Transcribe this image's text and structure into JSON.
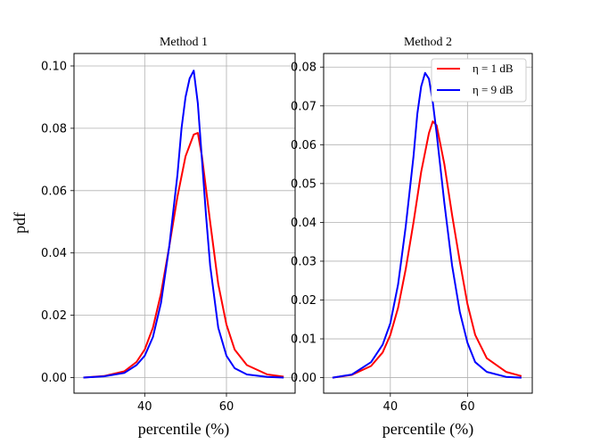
{
  "ylabel": "pdf",
  "colors": {
    "eta1": "#ff0000",
    "eta9": "#0000ff"
  },
  "legend": {
    "placement": "top-right",
    "panel": "Method 2"
  },
  "chart_data": [
    {
      "type": "line",
      "title": "Method 1",
      "xlabel": "percentile (%)",
      "ylabel": "pdf",
      "xlim": [
        22.7,
        76.8
      ],
      "ylim": [
        -0.005,
        0.104
      ],
      "xticks": [
        40,
        60
      ],
      "yticks": [
        "0.00",
        "0.02",
        "0.04",
        "0.06",
        "0.08",
        "0.10"
      ],
      "grid": true,
      "series": [
        {
          "name": "η = 1 dB",
          "color": "#ff0000",
          "x": [
            25,
            30,
            35,
            38,
            40,
            42,
            44,
            46,
            48,
            50,
            52,
            53,
            54,
            56,
            58,
            60,
            62,
            65,
            70,
            74
          ],
          "y": [
            0.0,
            0.0005,
            0.002,
            0.005,
            0.009,
            0.016,
            0.027,
            0.042,
            0.058,
            0.071,
            0.078,
            0.0785,
            0.071,
            0.05,
            0.03,
            0.017,
            0.009,
            0.004,
            0.001,
            0.0003
          ]
        },
        {
          "name": "η = 9 dB",
          "color": "#0000ff",
          "x": [
            25,
            30,
            35,
            38,
            40,
            42,
            44,
            46,
            48,
            49,
            50,
            51,
            52,
            53,
            54,
            55,
            56,
            58,
            60,
            62,
            65,
            70,
            74
          ],
          "y": [
            0.0,
            0.0004,
            0.0015,
            0.004,
            0.007,
            0.013,
            0.024,
            0.042,
            0.065,
            0.08,
            0.09,
            0.096,
            0.0985,
            0.088,
            0.07,
            0.052,
            0.036,
            0.016,
            0.007,
            0.003,
            0.001,
            0.0002,
            0.0
          ]
        }
      ]
    },
    {
      "type": "line",
      "title": "Method 2",
      "xlabel": "percentile (%)",
      "ylabel": "",
      "xlim": [
        22.7,
        76.8
      ],
      "ylim": [
        -0.004,
        0.0835
      ],
      "xticks": [
        40,
        60
      ],
      "yticks": [
        "0.00",
        "0.01",
        "0.02",
        "0.03",
        "0.04",
        "0.05",
        "0.06",
        "0.07",
        "0.08"
      ],
      "grid": true,
      "series": [
        {
          "name": "η = 1 dB",
          "color": "#ff0000",
          "x": [
            25,
            30,
            35,
            38,
            40,
            42,
            44,
            46,
            48,
            50,
            51,
            52,
            54,
            56,
            58,
            60,
            62,
            65,
            70,
            74
          ],
          "y": [
            0.0,
            0.0007,
            0.003,
            0.0065,
            0.011,
            0.018,
            0.028,
            0.04,
            0.053,
            0.063,
            0.066,
            0.065,
            0.055,
            0.042,
            0.03,
            0.019,
            0.011,
            0.005,
            0.0015,
            0.0004
          ]
        },
        {
          "name": "η = 9 dB",
          "color": "#0000ff",
          "x": [
            25,
            30,
            35,
            38,
            40,
            42,
            44,
            46,
            47,
            48,
            49,
            50,
            51,
            52,
            54,
            56,
            58,
            60,
            62,
            65,
            70,
            74
          ],
          "y": [
            0.0,
            0.0008,
            0.004,
            0.0085,
            0.014,
            0.024,
            0.039,
            0.057,
            0.068,
            0.075,
            0.0785,
            0.077,
            0.071,
            0.063,
            0.045,
            0.029,
            0.017,
            0.009,
            0.004,
            0.0015,
            0.0002,
            0.0
          ]
        }
      ]
    }
  ]
}
